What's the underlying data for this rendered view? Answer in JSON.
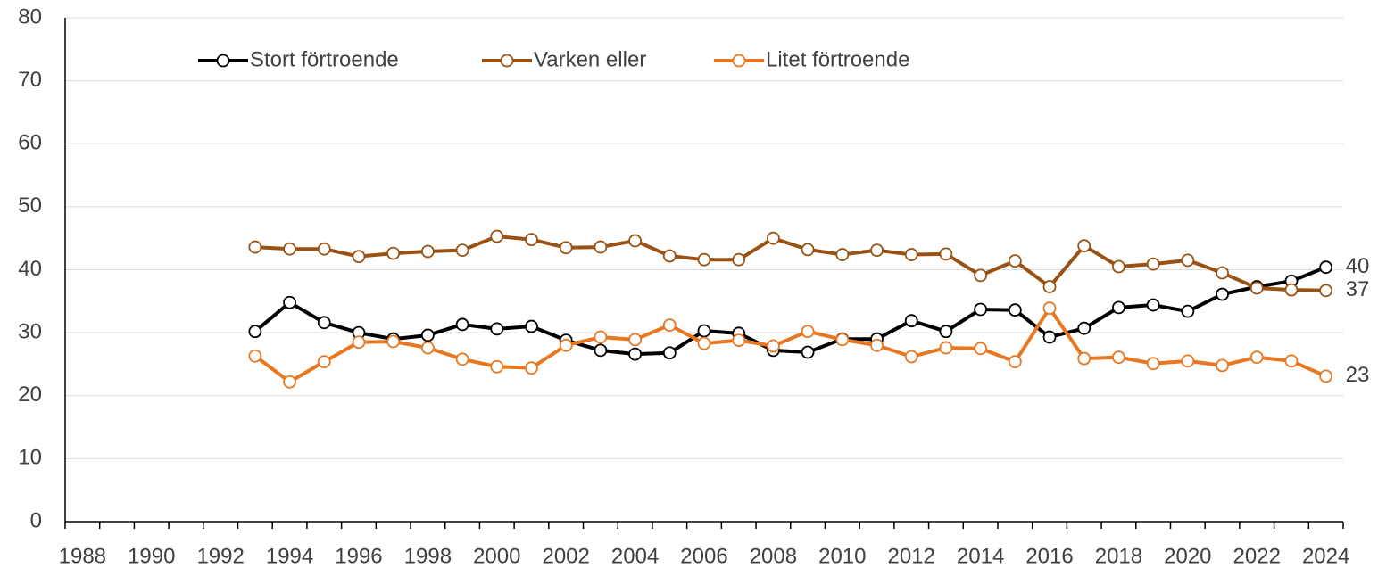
{
  "chart_data": {
    "type": "line",
    "categories": [
      "1988",
      null,
      "1990",
      null,
      "1992",
      null,
      "1994",
      null,
      "1996",
      null,
      "1998",
      null,
      "2000",
      null,
      "2002",
      null,
      "2004",
      null,
      "2006",
      null,
      "2008",
      null,
      "2010",
      null,
      "2012",
      null,
      "2014",
      null,
      "2016",
      null,
      "2018",
      null,
      "2020",
      null,
      "2022",
      null,
      "2024"
    ],
    "series": [
      {
        "name": "Stort förtroende",
        "color": "#000000",
        "values": [
          null,
          null,
          null,
          null,
          null,
          30.2,
          34.8,
          31.6,
          30.0,
          29.0,
          29.6,
          31.3,
          30.6,
          31.0,
          28.8,
          27.2,
          26.6,
          26.8,
          30.3,
          29.9,
          27.2,
          26.9,
          29.0,
          29.0,
          31.9,
          30.2,
          33.7,
          33.6,
          29.3,
          30.7,
          34.0,
          34.4,
          33.4,
          36.1,
          37.3,
          38.2,
          40.4
        ],
        "value_labels": [
          null,
          null,
          null,
          null,
          null,
          null,
          null,
          null,
          null,
          null,
          null,
          null,
          null,
          null,
          null,
          null,
          null,
          null,
          null,
          null,
          null,
          null,
          null,
          null,
          null,
          null,
          null,
          null,
          null,
          null,
          null,
          null,
          null,
          null,
          null,
          null,
          "40"
        ]
      },
      {
        "name": "Varken eller",
        "color": "#9a5214",
        "values": [
          null,
          null,
          null,
          null,
          null,
          43.6,
          43.3,
          43.3,
          42.1,
          42.6,
          42.9,
          43.1,
          45.3,
          44.8,
          43.5,
          43.6,
          44.6,
          42.2,
          41.6,
          41.6,
          45.0,
          43.2,
          42.4,
          43.1,
          42.4,
          42.5,
          39.1,
          41.4,
          37.3,
          43.8,
          40.5,
          40.9,
          41.5,
          39.5,
          37.1,
          36.8,
          36.7
        ],
        "value_labels": [
          null,
          null,
          null,
          null,
          null,
          null,
          null,
          null,
          null,
          null,
          null,
          null,
          null,
          null,
          null,
          null,
          null,
          null,
          null,
          null,
          null,
          null,
          null,
          null,
          null,
          null,
          null,
          null,
          null,
          null,
          null,
          null,
          null,
          null,
          null,
          null,
          "37"
        ]
      },
      {
        "name": "Litet förtroende",
        "color": "#e87722",
        "values": [
          null,
          null,
          null,
          null,
          null,
          26.3,
          22.2,
          25.4,
          28.5,
          28.6,
          27.6,
          25.8,
          24.6,
          24.4,
          28.0,
          29.3,
          28.9,
          31.2,
          28.3,
          28.8,
          27.9,
          30.2,
          28.9,
          28.0,
          26.2,
          27.6,
          27.5,
          25.4,
          33.9,
          25.9,
          26.1,
          25.1,
          25.5,
          24.8,
          26.1,
          25.5,
          23.1
        ],
        "value_labels": [
          null,
          null,
          null,
          null,
          null,
          null,
          null,
          null,
          null,
          null,
          null,
          null,
          null,
          null,
          null,
          null,
          null,
          null,
          null,
          null,
          null,
          null,
          null,
          null,
          null,
          null,
          null,
          null,
          null,
          null,
          null,
          null,
          null,
          null,
          null,
          null,
          "23"
        ]
      }
    ],
    "ylim": [
      0,
      80
    ],
    "yticks": [
      0,
      10,
      20,
      30,
      40,
      50,
      60,
      70,
      80
    ],
    "grid": true,
    "legend": "top"
  }
}
